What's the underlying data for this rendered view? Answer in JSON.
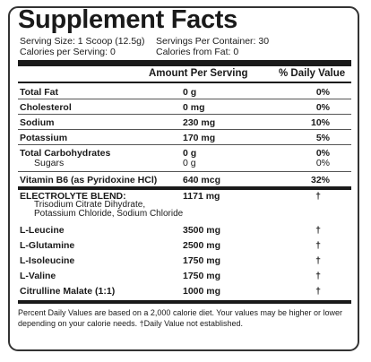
{
  "title": "Supplement Facts",
  "serving": {
    "size": "Serving Size: 1 Scoop (12.5g)",
    "per_container": "Servings Per Container: 30",
    "calories": "Calories per Serving: 0",
    "calories_fat": "Calories from Fat: 0"
  },
  "headers": {
    "amount": "Amount Per Serving",
    "dv": "% Daily Value"
  },
  "rows": [
    {
      "name": "Total Fat",
      "amount": "0 g",
      "dv": "0%"
    },
    {
      "name": "Cholesterol",
      "amount": "0 mg",
      "dv": "0%"
    },
    {
      "name": "Sodium",
      "amount": "230 mg",
      "dv": "10%"
    },
    {
      "name": "Potassium",
      "amount": "170 mg",
      "dv": "5%"
    },
    {
      "name": "Total Carbohydrates",
      "amount": "0 g",
      "dv": "0%"
    },
    {
      "name": "Sugars",
      "amount": "0 g",
      "dv": "0%"
    },
    {
      "name": "Vitamin B6 (as Pyridoxine HCl)",
      "amount": "640 mcg",
      "dv": "32%"
    }
  ],
  "blend": {
    "name": "ELECTROLYTE BLEND:",
    "detail1": "Trisodium Citrate Dihydrate,",
    "detail2": "Potassium Chloride, Sodium Chloride",
    "amount": "1171 mg",
    "dv": "†"
  },
  "amino": [
    {
      "name": "L-Leucine",
      "amount": "3500 mg",
      "dv": "†"
    },
    {
      "name": "L-Glutamine",
      "amount": "2500 mg",
      "dv": "†"
    },
    {
      "name": "L-Isoleucine",
      "amount": "1750 mg",
      "dv": "†"
    },
    {
      "name": "L-Valine",
      "amount": "1750 mg",
      "dv": "†"
    },
    {
      "name": "Citrulline Malate (1:1)",
      "amount": "1000 mg",
      "dv": "†"
    }
  ],
  "footer": "Percent Daily Values are based on a 2,000 calorie diet. Your values may be higher or lower depending on your calorie needs. †Daily Value not established."
}
